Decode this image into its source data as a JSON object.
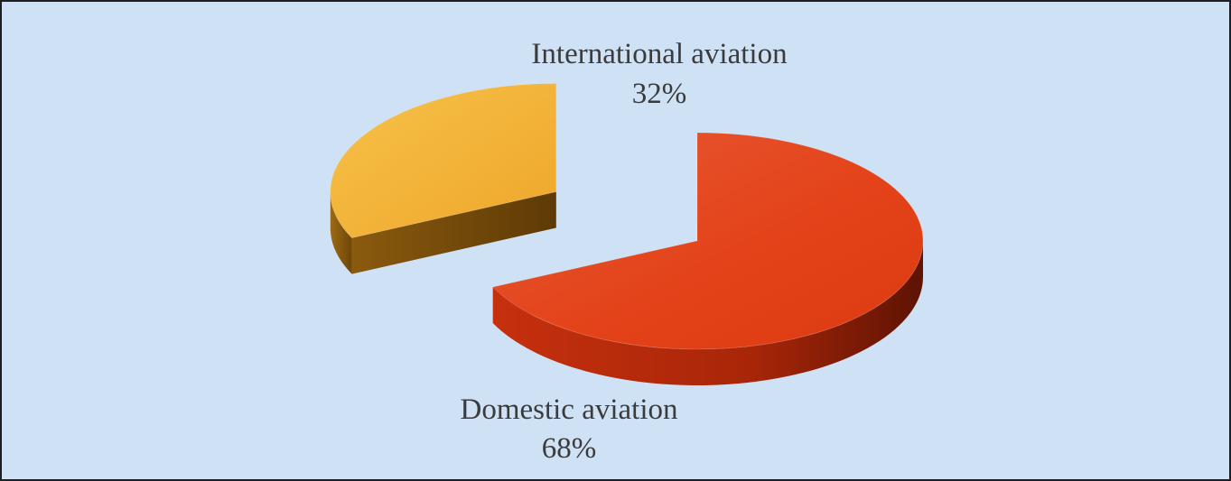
{
  "chart_data": {
    "type": "pie",
    "style": "3d-exploded",
    "slices": [
      {
        "label": "International aviation",
        "value": 32,
        "display": "32%",
        "color": "#f2a829"
      },
      {
        "label": "Domestic aviation",
        "value": 68,
        "display": "68%",
        "color": "#e04516"
      }
    ],
    "background": "#cfe1f4",
    "legend": "none"
  }
}
